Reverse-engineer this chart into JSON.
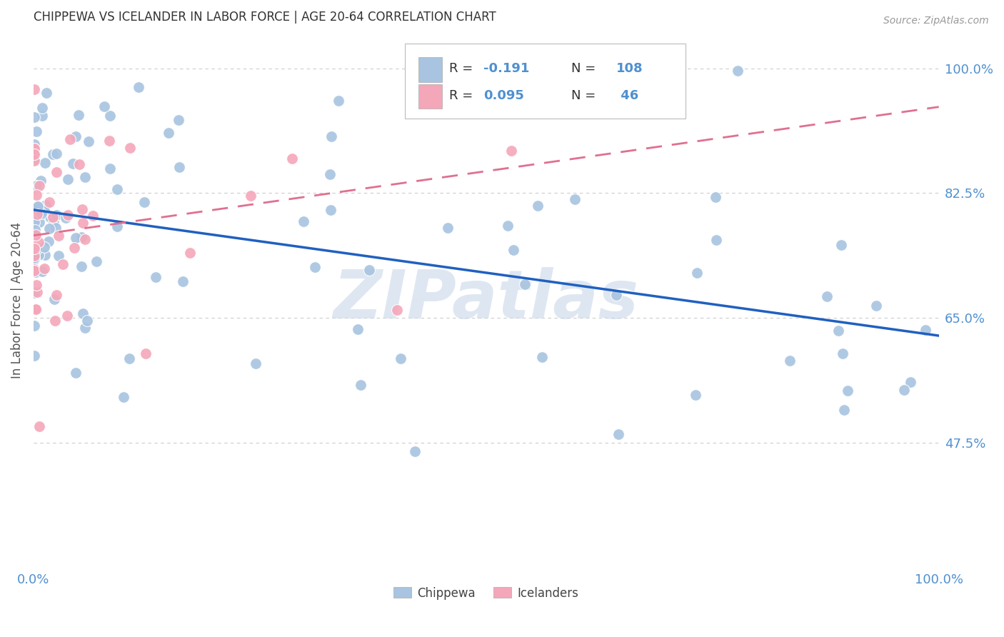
{
  "title": "CHIPPEWA VS ICELANDER IN LABOR FORCE | AGE 20-64 CORRELATION CHART",
  "source": "Source: ZipAtlas.com",
  "ylabel": "In Labor Force | Age 20-64",
  "r_chippewa": -0.191,
  "n_chippewa": 108,
  "r_icelanders": 0.095,
  "n_icelanders": 46,
  "chippewa_color": "#a8c4e0",
  "icelanders_color": "#f4a7b9",
  "trend_chippewa_color": "#2060c0",
  "trend_icelanders_color": "#e07090",
  "background_color": "#ffffff",
  "grid_color": "#cccccc",
  "title_color": "#333333",
  "axis_label_color": "#5090d0",
  "watermark_text": "ZIPatlas",
  "watermark_color": "#c8d8e8",
  "xlim": [
    0.0,
    1.0
  ],
  "ylim": [
    0.3,
    1.05
  ],
  "yticks": [
    0.475,
    0.65,
    0.825,
    1.0
  ],
  "ytick_labels": [
    "47.5%",
    "65.0%",
    "82.5%",
    "100.0%"
  ],
  "xtick_labels": [
    "0.0%",
    "100.0%"
  ],
  "legend_r1": "R = -0.191",
  "legend_n1": "N = 108",
  "legend_r2": "R = 0.095",
  "legend_n2": "N =  46"
}
